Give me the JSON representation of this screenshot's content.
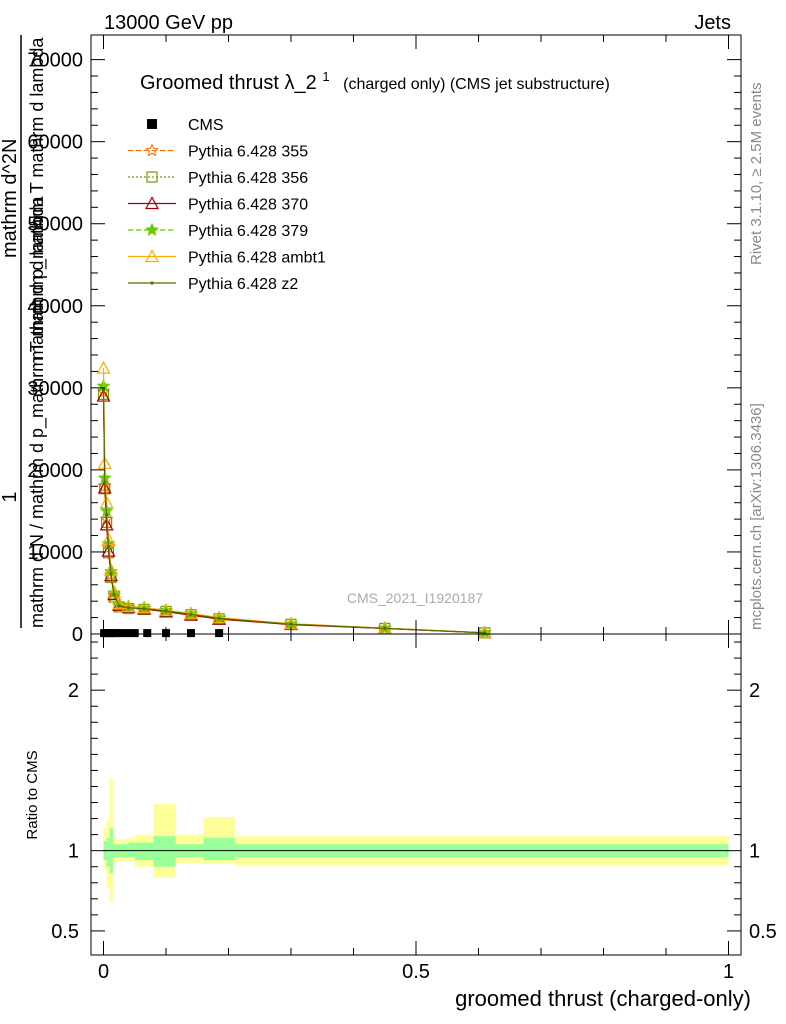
{
  "header": {
    "energy_label": "13000 GeV pp",
    "process_label": "Jets",
    "side_label_top": "Rivet 3.1.10, ≥ 2.5M events",
    "side_label_bottom": "mcplots.cern.ch [arXiv:1306.3436]",
    "watermark": "CMS_2021_I1920187"
  },
  "chart_data": [
    {
      "type": "line",
      "panel": "main",
      "title_main": "Groomed thrust",
      "title_lambda": "λ_2",
      "title_sup": "1",
      "title_rest": "(charged only) (CMS jet substructure)",
      "xlabel": "groomed thrust (charged-only)",
      "ylabel_numerator": "1",
      "ylabel_denominator": "mathrm d N / mathrm d p_mathrm T mathrm d lambda",
      "ylabel_mid": "mathrm d^2N",
      "ylabel_top": "mathrm d p_mathrm T mathrm d lambda",
      "xlim": [
        -0.02,
        1.02
      ],
      "ylim": [
        0,
        73000
      ],
      "yticks": [
        0,
        10000,
        20000,
        30000,
        40000,
        50000,
        60000,
        70000
      ],
      "ytick_labels": [
        "0",
        "10000",
        "20000",
        "30000",
        "40000",
        "50000",
        "60000",
        "70000"
      ],
      "legend_placement": "top-left",
      "cms": {
        "name": "CMS",
        "color": "#000000",
        "x": [
          0.001,
          0.005,
          0.01,
          0.015,
          0.02,
          0.03,
          0.04,
          0.05,
          0.07,
          0.1,
          0.14,
          0.185
        ],
        "y": [
          110,
          110,
          110,
          110,
          110,
          110,
          110,
          110,
          110,
          110,
          110,
          110
        ]
      },
      "series": [
        {
          "name": "Pythia 6.428 355",
          "color": "#ff6f00",
          "dash": "5,3",
          "marker": "star-open",
          "x": [
            0.0,
            0.002,
            0.005,
            0.008,
            0.012,
            0.017,
            0.025,
            0.04,
            0.065,
            0.1,
            0.14,
            0.185,
            0.3,
            0.45,
            0.61
          ],
          "y": [
            29500,
            18000,
            14000,
            10500,
            7200,
            4700,
            3400,
            3200,
            3100,
            2800,
            2400,
            1900,
            1200,
            700,
            150
          ]
        },
        {
          "name": "Pythia 6.428 356",
          "color": "#6f9f00",
          "dash": "2,2",
          "marker": "square-open",
          "x": [
            0.0,
            0.002,
            0.005,
            0.008,
            0.012,
            0.017,
            0.025,
            0.04,
            0.065,
            0.1,
            0.14,
            0.185,
            0.3,
            0.45,
            0.61
          ],
          "y": [
            29200,
            17700,
            13600,
            9900,
            6900,
            4500,
            3300,
            3100,
            3000,
            2750,
            2350,
            1850,
            1180,
            680,
            140
          ]
        },
        {
          "name": "Pythia 6.428 370",
          "color": "#a00000",
          "dash": "",
          "marker": "triangle-open",
          "x": [
            0.0,
            0.002,
            0.005,
            0.008,
            0.012,
            0.017,
            0.025,
            0.04,
            0.065,
            0.1,
            0.14,
            0.185,
            0.3,
            0.45,
            0.61
          ],
          "y": [
            29000,
            17800,
            13300,
            10100,
            7100,
            4800,
            3500,
            3250,
            3050,
            2700,
            2300,
            1800,
            1150,
            670,
            135
          ]
        },
        {
          "name": "Pythia 6.428 379",
          "color": "#66cc00",
          "dash": "5,3",
          "marker": "star",
          "x": [
            0.0,
            0.002,
            0.005,
            0.008,
            0.012,
            0.017,
            0.025,
            0.04,
            0.065,
            0.1,
            0.14,
            0.185,
            0.3,
            0.45,
            0.61
          ],
          "y": [
            30200,
            19000,
            15000,
            11000,
            7600,
            5000,
            3600,
            3300,
            3150,
            2850,
            2450,
            1950,
            1220,
            710,
            145
          ]
        },
        {
          "name": "Pythia 6.428 ambt1",
          "color": "#ffaa00",
          "dash": "",
          "marker": "triangle-open",
          "x": [
            0.0,
            0.002,
            0.005,
            0.008,
            0.012,
            0.017,
            0.025,
            0.04,
            0.065,
            0.1,
            0.14,
            0.185,
            0.3,
            0.45,
            0.61
          ],
          "y": [
            32400,
            20800,
            16000,
            11500,
            7800,
            5100,
            3700,
            3350,
            3200,
            2900,
            2500,
            2000,
            1250,
            720,
            150
          ]
        },
        {
          "name": "Pythia 6.428 z2",
          "color": "#556b00",
          "dash": "",
          "marker": "dot",
          "x": [
            0.0,
            0.002,
            0.005,
            0.008,
            0.012,
            0.017,
            0.025,
            0.04,
            0.065,
            0.1,
            0.14,
            0.185,
            0.3,
            0.45,
            0.61
          ],
          "y": [
            29800,
            18500,
            14500,
            10700,
            7300,
            4800,
            3450,
            3200,
            3100,
            2800,
            2400,
            1900,
            1200,
            700,
            145
          ]
        }
      ]
    },
    {
      "type": "area",
      "panel": "ratio",
      "ylabel": "Ratio to CMS",
      "xlim": [
        -0.02,
        1.02
      ],
      "ylim": [
        0.35,
        2.35
      ],
      "yticks": [
        0.5,
        1,
        2
      ],
      "ytick_labels": [
        "0.5",
        "1",
        "2"
      ],
      "xticks": [
        0,
        0.5,
        1
      ],
      "xtick_labels": [
        "0",
        "0.5",
        "1"
      ],
      "bin_edges": [
        0.0,
        0.005,
        0.01,
        0.015,
        0.02,
        0.03,
        0.04,
        0.05,
        0.08,
        0.115,
        0.16,
        0.21,
        1.0
      ],
      "outer_band_colour": "#ffff99",
      "inner_band_colour": "#99ff99",
      "outer_band": [
        [
          0.88,
          1.14
        ],
        [
          0.77,
          1.2
        ],
        [
          0.68,
          1.45
        ],
        [
          0.91,
          1.09
        ],
        [
          0.93,
          1.07
        ],
        [
          0.93,
          1.07
        ],
        [
          0.93,
          1.08
        ],
        [
          0.9,
          1.1
        ],
        [
          0.83,
          1.29
        ],
        [
          0.92,
          1.1
        ],
        [
          0.92,
          1.21
        ],
        [
          0.91,
          1.09
        ]
      ],
      "inner_band": [
        [
          0.94,
          1.06
        ],
        [
          0.9,
          1.08
        ],
        [
          0.86,
          1.14
        ],
        [
          0.96,
          1.04
        ],
        [
          0.96,
          1.04
        ],
        [
          0.96,
          1.04
        ],
        [
          0.96,
          1.05
        ],
        [
          0.94,
          1.05
        ],
        [
          0.9,
          1.09
        ],
        [
          0.96,
          1.04
        ],
        [
          0.94,
          1.08
        ],
        [
          0.96,
          1.04
        ]
      ]
    }
  ]
}
